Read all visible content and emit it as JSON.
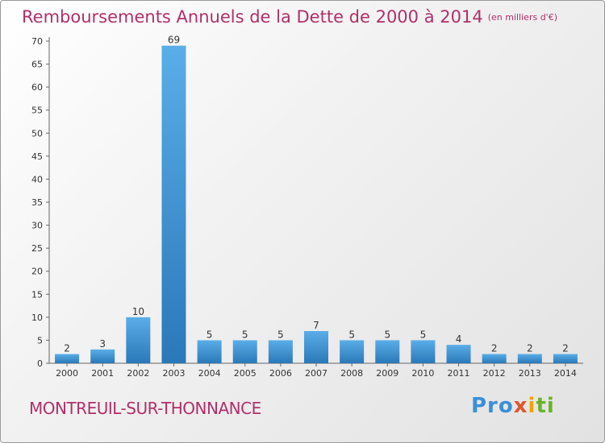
{
  "header": {
    "title": "Remboursements Annuels de la Dette de 2000 à 2014",
    "unit": "(en milliers d'€)"
  },
  "footer": {
    "commune": "MONTREUIL-SUR-THONNANCE",
    "logo_parts": [
      "Pro",
      "x",
      "i",
      "ti"
    ]
  },
  "colors": {
    "bar_top": "#5aaee8",
    "bar_bottom": "#2a78b8",
    "title": "#b0306a",
    "grid": "#dddddd"
  },
  "chart_data": {
    "type": "bar",
    "title": "Remboursements Annuels de la Dette de 2000 à 2014",
    "xlabel": "",
    "ylabel": "",
    "categories": [
      "2000",
      "2001",
      "2002",
      "2003",
      "2004",
      "2005",
      "2006",
      "2007",
      "2008",
      "2009",
      "2010",
      "2011",
      "2012",
      "2013",
      "2014"
    ],
    "values": [
      2,
      3,
      10,
      69,
      5,
      5,
      5,
      7,
      5,
      5,
      5,
      4,
      2,
      2,
      2
    ],
    "ylim": [
      0,
      70
    ],
    "yticks": [
      0,
      5,
      10,
      15,
      20,
      25,
      30,
      35,
      40,
      45,
      50,
      55,
      60,
      65,
      70
    ],
    "grid": false
  }
}
